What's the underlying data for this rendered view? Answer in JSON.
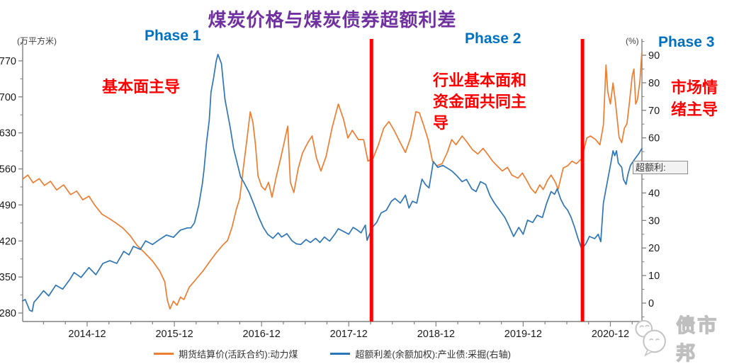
{
  "header": {
    "title": "煤炭价格与煤炭债券超额利差"
  },
  "annotations": {
    "phase1": "Phase 1",
    "phase2": "Phase 2",
    "phase3": "Phase 3",
    "note1": "基本面主导",
    "note2": "行业基本面和资金面共同主导",
    "note3": "市场情绪主导"
  },
  "tooltip": {
    "label": "超额利:"
  },
  "watermark": {
    "text": "债市邦"
  },
  "legend": [
    {
      "label": "期货结算价(活跃合约):动力煤",
      "color": "#ED7D31"
    },
    {
      "label": "超额利差(余额加权):产业债:采掘(右轴)",
      "color": "#2E75B6"
    }
  ],
  "colors": {
    "title": "#7030A0",
    "phase_label": "#0070C0",
    "note": "#FF0000",
    "divider": "#FF0000",
    "axis": "#808080",
    "tick_text": "#1a1a1a",
    "series_orange": "#ED7D31",
    "series_blue": "#2E75B6"
  },
  "chart_data": {
    "type": "line",
    "title": "煤炭价格与煤炭债券超额利差",
    "x_axis": {
      "unit": "decimal_year",
      "tick_labels": [
        "2014-12",
        "2015-12",
        "2016-12",
        "2017-12",
        "2018-12",
        "2019-12",
        "2020-12"
      ],
      "tick_positions": [
        2014.96,
        2015.96,
        2016.96,
        2017.96,
        2018.96,
        2019.96,
        2020.96
      ],
      "minor_tick_step_years": 0.25,
      "range": [
        2014.22,
        2021.32
      ]
    },
    "left_axis": {
      "label": "(万平方米)",
      "ticks": [
        280,
        350,
        420,
        490,
        560,
        630,
        700,
        770
      ],
      "minor_step": 35,
      "range": [
        263,
        812
      ]
    },
    "right_axis": {
      "label": "(%)",
      "ticks": [
        0,
        10,
        20,
        30,
        40,
        50,
        60,
        70,
        80,
        90
      ],
      "minor_step": 5,
      "range": [
        -7,
        96
      ]
    },
    "phase_dividers": [
      2018.22,
      2020.64
    ],
    "series": [
      {
        "name": "期货结算价(活跃合约):动力煤",
        "axis": "left",
        "color": "#ED7D31",
        "points": [
          [
            2014.22,
            540
          ],
          [
            2014.28,
            548
          ],
          [
            2014.34,
            533
          ],
          [
            2014.41,
            541
          ],
          [
            2014.47,
            528
          ],
          [
            2014.54,
            536
          ],
          [
            2014.61,
            519
          ],
          [
            2014.69,
            529
          ],
          [
            2014.77,
            510
          ],
          [
            2014.84,
            517
          ],
          [
            2014.91,
            500
          ],
          [
            2014.98,
            507
          ],
          [
            2015.05,
            489
          ],
          [
            2015.13,
            472
          ],
          [
            2015.21,
            464
          ],
          [
            2015.29,
            455
          ],
          [
            2015.37,
            445
          ],
          [
            2015.45,
            431
          ],
          [
            2015.53,
            412
          ],
          [
            2015.62,
            397
          ],
          [
            2015.71,
            381
          ],
          [
            2015.79,
            362
          ],
          [
            2015.85,
            341
          ],
          [
            2015.88,
            305
          ],
          [
            2015.91,
            288
          ],
          [
            2015.95,
            303
          ],
          [
            2015.99,
            295
          ],
          [
            2016.03,
            311
          ],
          [
            2016.07,
            306
          ],
          [
            2016.13,
            330
          ],
          [
            2016.21,
            346
          ],
          [
            2016.29,
            362
          ],
          [
            2016.37,
            381
          ],
          [
            2016.44,
            397
          ],
          [
            2016.51,
            411
          ],
          [
            2016.57,
            421
          ],
          [
            2016.62,
            446
          ],
          [
            2016.67,
            481
          ],
          [
            2016.71,
            503
          ],
          [
            2016.75,
            560
          ],
          [
            2016.79,
            614
          ],
          [
            2016.83,
            671
          ],
          [
            2016.86,
            651
          ],
          [
            2016.89,
            608
          ],
          [
            2016.92,
            546
          ],
          [
            2016.96,
            526
          ],
          [
            2017.0,
            519
          ],
          [
            2017.04,
            534
          ],
          [
            2017.08,
            505
          ],
          [
            2017.13,
            546
          ],
          [
            2017.18,
            581
          ],
          [
            2017.23,
            620
          ],
          [
            2017.26,
            643
          ],
          [
            2017.29,
            534
          ],
          [
            2017.33,
            514
          ],
          [
            2017.38,
            561
          ],
          [
            2017.43,
            591
          ],
          [
            2017.49,
            611
          ],
          [
            2017.54,
            624
          ],
          [
            2017.59,
            581
          ],
          [
            2017.64,
            556
          ],
          [
            2017.7,
            584
          ],
          [
            2017.77,
            641
          ],
          [
            2017.84,
            686
          ],
          [
            2017.9,
            656
          ],
          [
            2017.95,
            620
          ],
          [
            2018.0,
            635
          ],
          [
            2018.07,
            617
          ],
          [
            2018.13,
            617
          ],
          [
            2018.18,
            575
          ],
          [
            2018.24,
            581
          ],
          [
            2018.3,
            607
          ],
          [
            2018.36,
            639
          ],
          [
            2018.42,
            652
          ],
          [
            2018.48,
            635
          ],
          [
            2018.55,
            611
          ],
          [
            2018.61,
            592
          ],
          [
            2018.67,
            621
          ],
          [
            2018.73,
            671
          ],
          [
            2018.77,
            669
          ],
          [
            2018.82,
            644
          ],
          [
            2018.87,
            617
          ],
          [
            2018.92,
            575
          ],
          [
            2018.97,
            566
          ],
          [
            2019.03,
            570
          ],
          [
            2019.09,
            592
          ],
          [
            2019.14,
            617
          ],
          [
            2019.19,
            607
          ],
          [
            2019.26,
            624
          ],
          [
            2019.32,
            611
          ],
          [
            2019.38,
            597
          ],
          [
            2019.44,
            589
          ],
          [
            2019.5,
            600
          ],
          [
            2019.55,
            589
          ],
          [
            2019.61,
            575
          ],
          [
            2019.66,
            566
          ],
          [
            2019.72,
            556
          ],
          [
            2019.78,
            563
          ],
          [
            2019.83,
            548
          ],
          [
            2019.9,
            542
          ],
          [
            2019.95,
            552
          ],
          [
            2020.0,
            538
          ],
          [
            2020.05,
            522
          ],
          [
            2020.1,
            513
          ],
          [
            2020.15,
            529
          ],
          [
            2020.19,
            520
          ],
          [
            2020.24,
            538
          ],
          [
            2020.28,
            548
          ],
          [
            2020.33,
            534
          ],
          [
            2020.36,
            520
          ],
          [
            2020.42,
            562
          ],
          [
            2020.47,
            566
          ],
          [
            2020.52,
            575
          ],
          [
            2020.57,
            570
          ],
          [
            2020.63,
            580
          ],
          [
            2020.69,
            620
          ],
          [
            2020.73,
            624
          ],
          [
            2020.79,
            617
          ],
          [
            2020.84,
            607
          ],
          [
            2020.88,
            645
          ],
          [
            2020.91,
            762
          ],
          [
            2020.93,
            710
          ],
          [
            2020.96,
            686
          ],
          [
            2020.99,
            727
          ],
          [
            2021.02,
            686
          ],
          [
            2021.06,
            621
          ],
          [
            2021.09,
            611
          ],
          [
            2021.12,
            639
          ],
          [
            2021.15,
            648
          ],
          [
            2021.18,
            692
          ],
          [
            2021.21,
            741
          ],
          [
            2021.23,
            754
          ],
          [
            2021.25,
            686
          ],
          [
            2021.27,
            694
          ],
          [
            2021.3,
            732
          ],
          [
            2021.32,
            786
          ]
        ]
      },
      {
        "name": "超额利差(余额加权):产业债:采掘(右轴)",
        "axis": "right",
        "color": "#2E75B6",
        "points": [
          [
            2014.22,
            0.8
          ],
          [
            2014.25,
            1.3
          ],
          [
            2014.3,
            -2.6
          ],
          [
            2014.33,
            -3
          ],
          [
            2014.35,
            0.3
          ],
          [
            2014.4,
            2.1
          ],
          [
            2014.46,
            4.5
          ],
          [
            2014.52,
            2.6
          ],
          [
            2014.6,
            6.5
          ],
          [
            2014.68,
            5.1
          ],
          [
            2014.76,
            8.5
          ],
          [
            2014.81,
            11.1
          ],
          [
            2014.89,
            9.3
          ],
          [
            2014.98,
            12.9
          ],
          [
            2015.06,
            10.3
          ],
          [
            2015.14,
            14.4
          ],
          [
            2015.22,
            15.4
          ],
          [
            2015.3,
            14.4
          ],
          [
            2015.38,
            18.8
          ],
          [
            2015.44,
            17.5
          ],
          [
            2015.49,
            20.6
          ],
          [
            2015.57,
            19.5
          ],
          [
            2015.63,
            22.6
          ],
          [
            2015.71,
            21.3
          ],
          [
            2015.79,
            23.1
          ],
          [
            2015.87,
            24.7
          ],
          [
            2015.95,
            23.9
          ],
          [
            2016.03,
            26.5
          ],
          [
            2016.11,
            27.3
          ],
          [
            2016.15,
            27.3
          ],
          [
            2016.19,
            29.1
          ],
          [
            2016.24,
            35.5
          ],
          [
            2016.28,
            43.2
          ],
          [
            2016.3,
            48.3
          ],
          [
            2016.33,
            58.6
          ],
          [
            2016.36,
            66.3
          ],
          [
            2016.38,
            76.6
          ],
          [
            2016.41,
            81.8
          ],
          [
            2016.44,
            88
          ],
          [
            2016.46,
            90.3
          ],
          [
            2016.5,
            87
          ],
          [
            2016.54,
            74
          ],
          [
            2016.6,
            63.8
          ],
          [
            2016.64,
            56
          ],
          [
            2016.68,
            50.9
          ],
          [
            2016.72,
            45.8
          ],
          [
            2016.76,
            43.7
          ],
          [
            2016.82,
            40
          ],
          [
            2016.87,
            36
          ],
          [
            2016.93,
            31
          ],
          [
            2016.98,
            27.5
          ],
          [
            2017.03,
            25
          ],
          [
            2017.09,
            23.5
          ],
          [
            2017.15,
            25.5
          ],
          [
            2017.19,
            24
          ],
          [
            2017.25,
            25.2
          ],
          [
            2017.31,
            22.6
          ],
          [
            2017.36,
            21.5
          ],
          [
            2017.41,
            21.3
          ],
          [
            2017.47,
            23.1
          ],
          [
            2017.52,
            22
          ],
          [
            2017.58,
            23.5
          ],
          [
            2017.63,
            22
          ],
          [
            2017.68,
            24
          ],
          [
            2017.74,
            22.5
          ],
          [
            2017.8,
            25
          ],
          [
            2017.84,
            27
          ],
          [
            2017.9,
            26
          ],
          [
            2017.96,
            25
          ],
          [
            2018.01,
            27.5
          ],
          [
            2018.06,
            26.5
          ],
          [
            2018.1,
            25.5
          ],
          [
            2018.15,
            28.3
          ],
          [
            2018.17,
            22.8
          ],
          [
            2018.23,
            27.5
          ],
          [
            2018.28,
            29.3
          ],
          [
            2018.33,
            32.7
          ],
          [
            2018.39,
            33.7
          ],
          [
            2018.45,
            37
          ],
          [
            2018.49,
            38
          ],
          [
            2018.55,
            36.3
          ],
          [
            2018.61,
            39.2
          ],
          [
            2018.65,
            34.5
          ],
          [
            2018.69,
            37
          ],
          [
            2018.74,
            36.3
          ],
          [
            2018.8,
            45
          ],
          [
            2018.84,
            43
          ],
          [
            2018.88,
            41.8
          ],
          [
            2018.93,
            51.4
          ],
          [
            2018.98,
            49.3
          ],
          [
            2019.04,
            50
          ],
          [
            2019.1,
            48.8
          ],
          [
            2019.14,
            48
          ],
          [
            2019.2,
            46.2
          ],
          [
            2019.26,
            44.1
          ],
          [
            2019.31,
            44.9
          ],
          [
            2019.37,
            41.5
          ],
          [
            2019.42,
            40.5
          ],
          [
            2019.47,
            44.1
          ],
          [
            2019.53,
            43.1
          ],
          [
            2019.58,
            39
          ],
          [
            2019.63,
            36.3
          ],
          [
            2019.69,
            33.7
          ],
          [
            2019.75,
            31.1
          ],
          [
            2019.79,
            28.5
          ],
          [
            2019.85,
            24.2
          ],
          [
            2019.91,
            27.5
          ],
          [
            2019.96,
            25
          ],
          [
            2020.01,
            30.1
          ],
          [
            2020.07,
            29.3
          ],
          [
            2020.12,
            31.9
          ],
          [
            2020.18,
            31.1
          ],
          [
            2020.23,
            36.3
          ],
          [
            2020.28,
            40.5
          ],
          [
            2020.32,
            39.5
          ],
          [
            2020.35,
            41.5
          ],
          [
            2020.39,
            37.8
          ],
          [
            2020.43,
            35.3
          ],
          [
            2020.47,
            33.7
          ],
          [
            2020.51,
            31.1
          ],
          [
            2020.55,
            27.5
          ],
          [
            2020.59,
            23.4
          ],
          [
            2020.63,
            19.7
          ],
          [
            2020.68,
            21.6
          ],
          [
            2020.72,
            24.2
          ],
          [
            2020.78,
            23.4
          ],
          [
            2020.82,
            25
          ],
          [
            2020.85,
            22.3
          ],
          [
            2020.88,
            36.3
          ],
          [
            2020.91,
            41.5
          ],
          [
            2020.93,
            44.9
          ],
          [
            2020.96,
            50
          ],
          [
            2020.99,
            55.3
          ],
          [
            2021.01,
            53.5
          ],
          [
            2021.03,
            55.3
          ],
          [
            2021.05,
            50.9
          ],
          [
            2021.09,
            49.3
          ],
          [
            2021.11,
            44.9
          ],
          [
            2021.14,
            43.1
          ],
          [
            2021.16,
            46.6
          ],
          [
            2021.19,
            50
          ],
          [
            2021.23,
            51.9
          ],
          [
            2021.29,
            54.5
          ],
          [
            2021.32,
            56.1
          ]
        ]
      }
    ]
  }
}
